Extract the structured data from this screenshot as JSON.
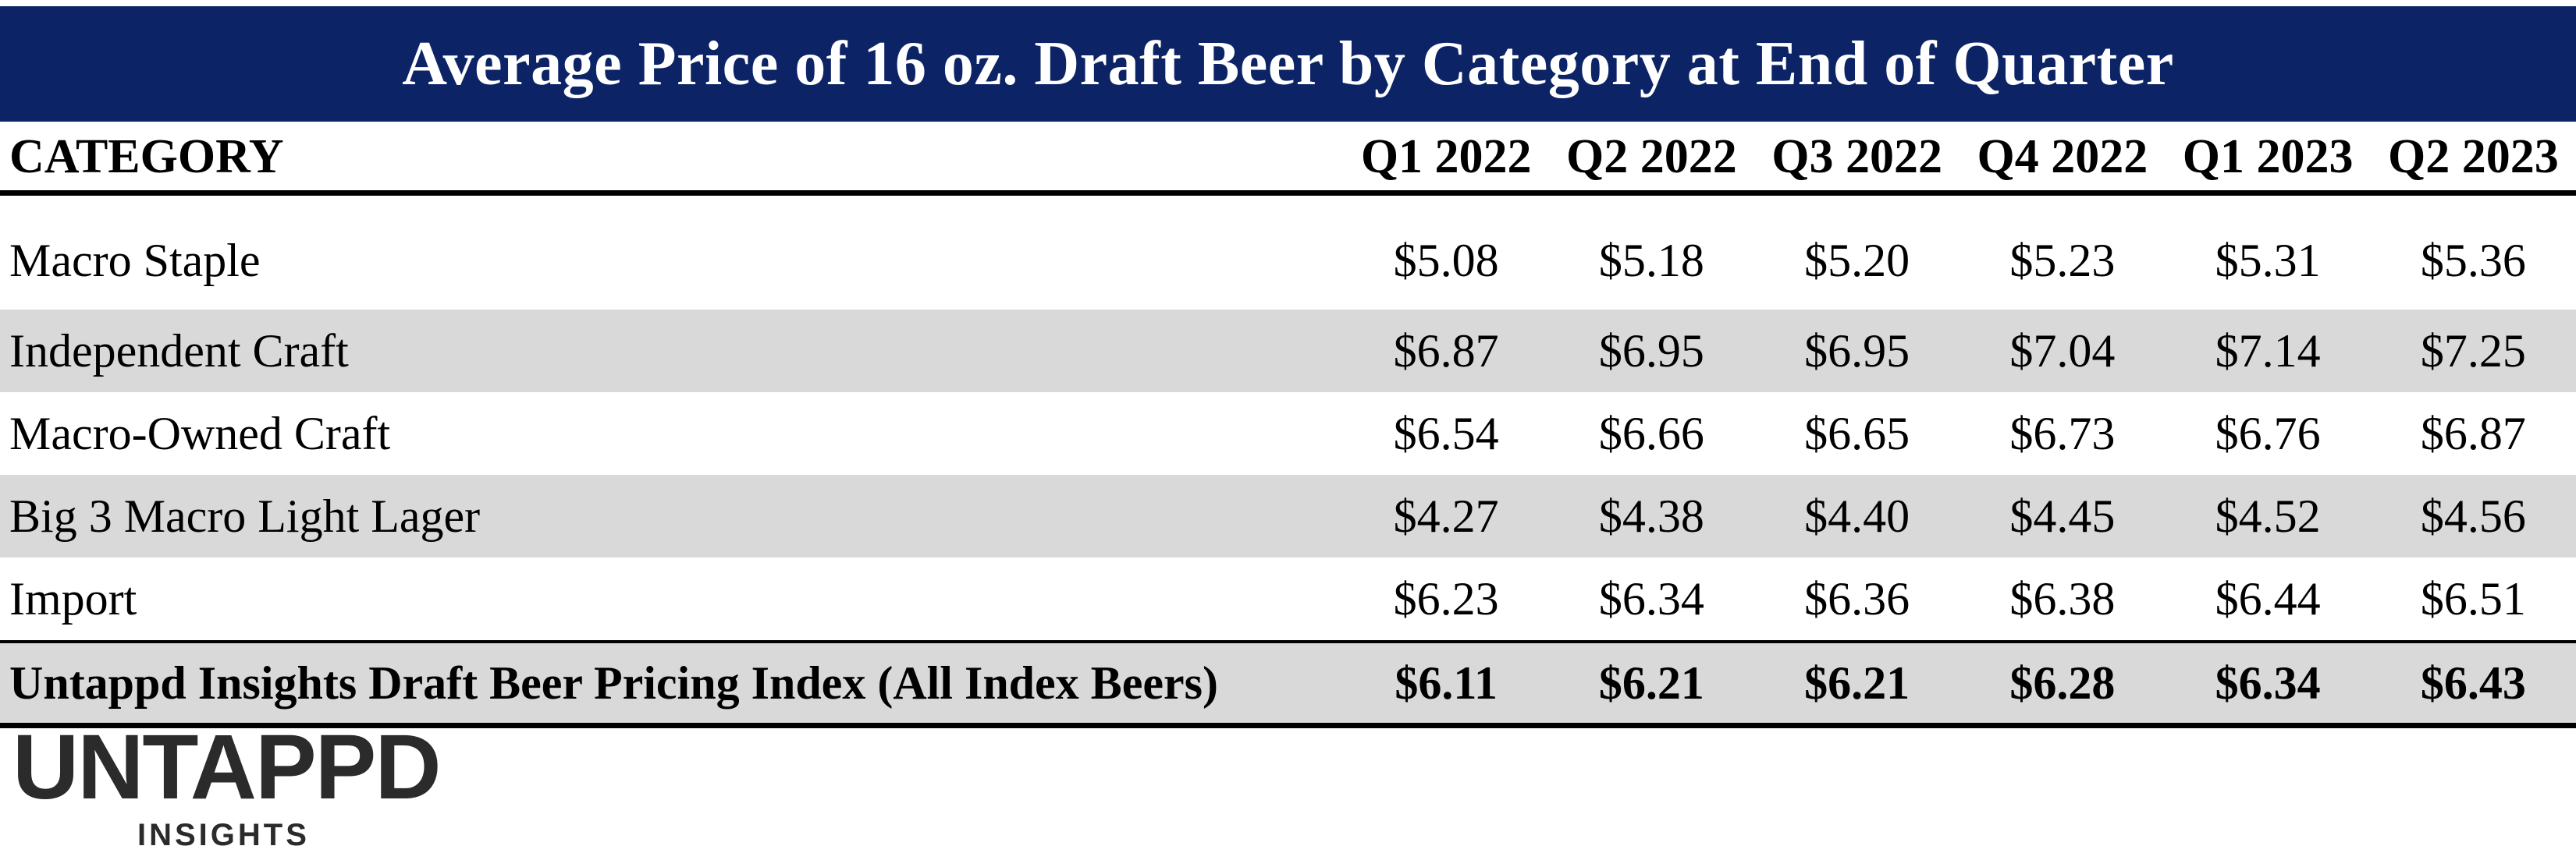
{
  "chart_data": {
    "type": "table",
    "title": "Average Price of 16 oz. Draft Beer by Category at End of Quarter",
    "columns": [
      "CATEGORY",
      "Q1 2022",
      "Q2 2022",
      "Q3 2022",
      "Q4 2022",
      "Q1 2023",
      "Q2 2023"
    ],
    "rows": [
      {
        "category": "Macro Staple",
        "values": [
          "$5.08",
          "$5.18",
          "$5.20",
          "$5.23",
          "$5.31",
          "$5.36"
        ]
      },
      {
        "category": "Independent Craft",
        "values": [
          "$6.87",
          "$6.95",
          "$6.95",
          "$7.04",
          "$7.14",
          "$7.25"
        ]
      },
      {
        "category": "Macro-Owned Craft",
        "values": [
          "$6.54",
          "$6.66",
          "$6.65",
          "$6.73",
          "$6.76",
          "$6.87"
        ]
      },
      {
        "category": "Big 3 Macro Light Lager",
        "values": [
          "$4.27",
          "$4.38",
          "$4.40",
          "$4.45",
          "$4.52",
          "$4.56"
        ]
      },
      {
        "category": "Import",
        "values": [
          "$6.23",
          "$6.34",
          "$6.36",
          "$6.38",
          "$6.44",
          "$6.51"
        ]
      }
    ],
    "total": {
      "category": "Untappd Insights Draft Beer Pricing Index (All Index Beers)",
      "values": [
        "$6.11",
        "$6.21",
        "$6.21",
        "$6.28",
        "$6.34",
        "$6.43"
      ]
    }
  },
  "colors": {
    "title_bar": "#0c2366",
    "row_shade": "#d9d9d9",
    "logo": "#2b2b2b"
  },
  "logo": {
    "main": "UNTAPPD",
    "sub": "INSIGHTS"
  }
}
